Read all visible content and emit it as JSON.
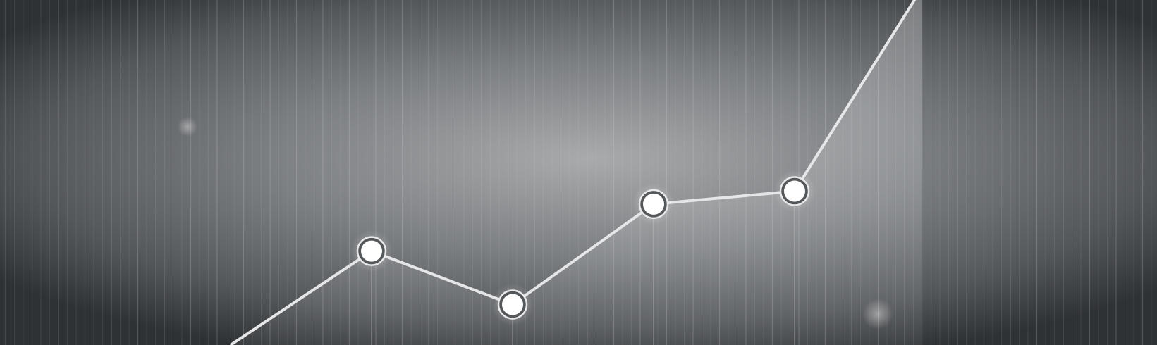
{
  "image": {
    "subject": "abstract-line-graph-background",
    "colors": {
      "background_center": "#a9aaac",
      "background_mid": "#6d7073",
      "background_edge": "#2f3234",
      "stripe": "#d6d8da",
      "line": "#e4e6e8",
      "marker_fill": "#ffffff",
      "marker_ring": "#55585b",
      "fill_area": "#f2f3f4"
    }
  },
  "chart_data": {
    "type": "line",
    "series": [
      {
        "x": [
          0,
          1,
          2,
          3,
          4,
          5
        ],
        "values": [
          0.0,
          0.58,
          0.25,
          0.87,
          0.95,
          2.2
        ]
      }
    ],
    "markers": [
      false,
      true,
      true,
      true,
      true,
      false
    ],
    "ylim": [
      0,
      2.2
    ],
    "grid": false
  }
}
